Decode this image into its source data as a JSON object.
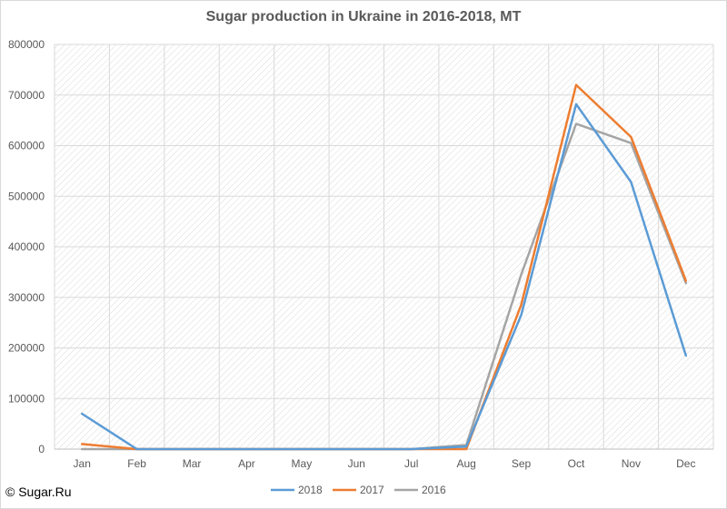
{
  "credit": "© Sugar.Ru",
  "chart_data": {
    "type": "line",
    "title": "Sugar production in Ukraine in 2016-2018, MT",
    "xlabel": "",
    "ylabel": "",
    "categories": [
      "Jan",
      "Feb",
      "Mar",
      "Apr",
      "May",
      "Jun",
      "Jul",
      "Aug",
      "Sep",
      "Oct",
      "Nov",
      "Dec"
    ],
    "ylim": [
      0,
      800000
    ],
    "yticks": [
      0,
      100000,
      200000,
      300000,
      400000,
      500000,
      600000,
      700000,
      800000
    ],
    "ytick_labels": [
      "0",
      "100000",
      "200000",
      "300000",
      "400000",
      "500000",
      "600000",
      "700000",
      "800000"
    ],
    "grid": true,
    "legend_position": "bottom",
    "series": [
      {
        "name": "2018",
        "color": "#5b9bd5",
        "values": [
          70000,
          0,
          0,
          0,
          0,
          0,
          0,
          5000,
          265000,
          682000,
          528000,
          185000
        ]
      },
      {
        "name": "2017",
        "color": "#ed7d31",
        "values": [
          10000,
          0,
          0,
          0,
          0,
          0,
          0,
          0,
          285000,
          720000,
          617000,
          333000
        ]
      },
      {
        "name": "2016",
        "color": "#a5a5a5",
        "values": [
          0,
          0,
          0,
          0,
          0,
          0,
          0,
          8000,
          345000,
          643000,
          605000,
          328000
        ]
      }
    ]
  }
}
